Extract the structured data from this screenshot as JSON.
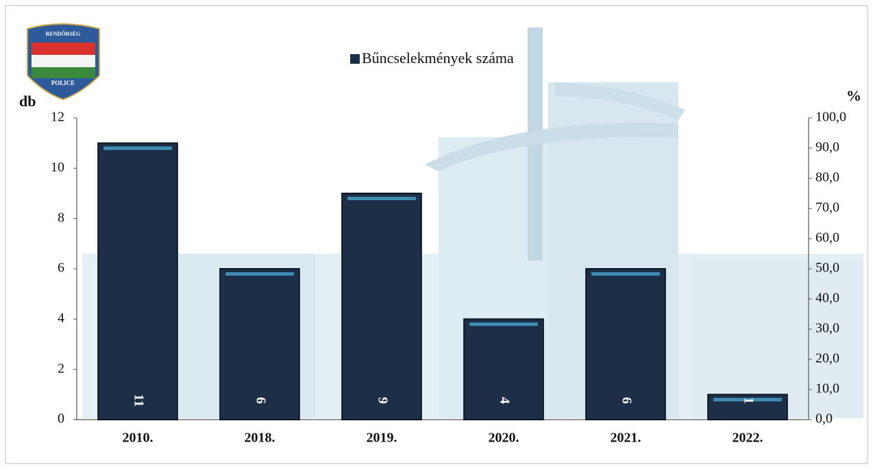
{
  "logo": {
    "top": "RENDŐRSÉG",
    "bottom": "POLICE"
  },
  "chart_data": {
    "type": "bar",
    "legend": "Bűncselekmények száma",
    "y_label": "db",
    "y2_label": "%",
    "categories": [
      "2010.",
      "2018.",
      "2019.",
      "2020.",
      "2021.",
      "2022."
    ],
    "values": [
      11,
      6,
      9,
      4,
      6,
      1
    ],
    "color": "#1d2f47",
    "ylim": [
      0,
      12
    ],
    "yticks": [
      0,
      2,
      4,
      6,
      8,
      10,
      12
    ],
    "y2lim": [
      0,
      100
    ],
    "y2ticks": [
      {
        "value": 0,
        "label": "0,0"
      },
      {
        "value": 10,
        "label": "10,0"
      },
      {
        "value": 20,
        "label": "20,0"
      },
      {
        "value": 30,
        "label": "30,0"
      },
      {
        "value": 40,
        "label": "40,0"
      },
      {
        "value": 50,
        "label": "50,0"
      },
      {
        "value": 60,
        "label": "60,0"
      },
      {
        "value": 70,
        "label": "70,0"
      },
      {
        "value": 80,
        "label": "80,0"
      },
      {
        "value": 90,
        "label": "90,0"
      },
      {
        "value": 100,
        "label": "100,0"
      }
    ]
  }
}
